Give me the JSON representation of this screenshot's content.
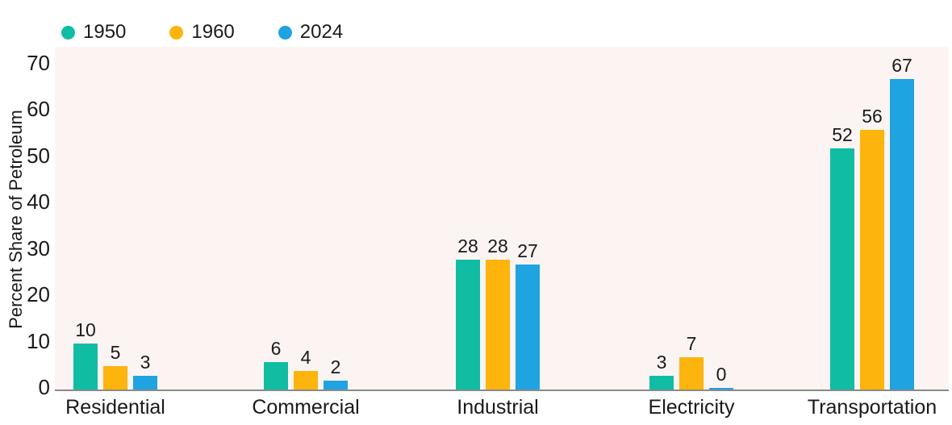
{
  "chart_data": {
    "type": "bar",
    "categories": [
      "Residential",
      "Commercial",
      "Industrial",
      "Electricity",
      "Transportation"
    ],
    "series": [
      {
        "name": "1950",
        "color": "#10BDA3",
        "values": [
          10,
          6,
          28,
          3,
          52
        ]
      },
      {
        "name": "1960",
        "color": "#FDB40C",
        "values": [
          5,
          4,
          28,
          7,
          56
        ]
      },
      {
        "name": "2024",
        "color": "#1FA3E1",
        "values": [
          3,
          2,
          27,
          0,
          67
        ]
      }
    ],
    "value_labels": [
      [
        "10",
        "6",
        "28",
        "3",
        "52"
      ],
      [
        "5",
        "4",
        "28",
        "7",
        "56"
      ],
      [
        "3",
        "2",
        "27",
        "0",
        "67"
      ]
    ],
    "title": "",
    "xlabel": "",
    "ylabel": "Percent Share of Petroleum",
    "ylim": [
      0,
      70
    ],
    "yticks": [
      "0",
      "10",
      "20",
      "30",
      "40",
      "50",
      "60",
      "70"
    ],
    "grid": false,
    "legend_position": "top-left",
    "colors": {
      "plot_background": "#FBF4F3",
      "axis_line": "#8A8A8A",
      "text": "#1A1A1A",
      "page_background": "#FFFFFF"
    }
  }
}
